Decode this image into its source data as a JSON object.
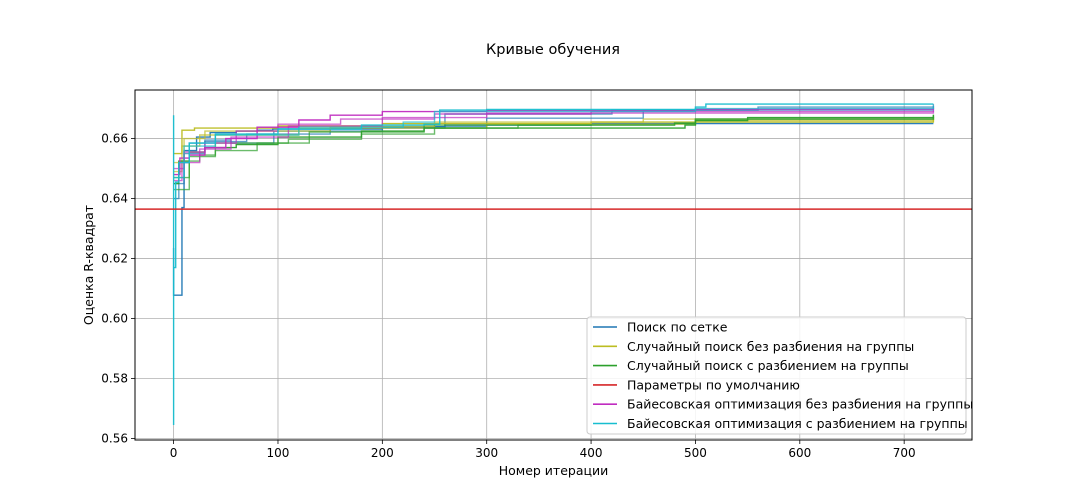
{
  "chart_data": {
    "type": "line",
    "title": "Кривые обучения",
    "xlabel": "Номер итерации",
    "ylabel": "Оценка R-квадрат",
    "xlim": [
      -37,
      765
    ],
    "ylim": [
      0.5595,
      0.6762
    ],
    "xticks": [
      0,
      100,
      200,
      300,
      400,
      500,
      600,
      700
    ],
    "yticks": [
      0.56,
      0.58,
      0.6,
      0.62,
      0.64,
      0.66
    ],
    "ytick_labels": [
      "0.56",
      "0.58",
      "0.60",
      "0.62",
      "0.64",
      "0.66"
    ],
    "grid": true,
    "legend_position": "lower-right",
    "hlines": [
      {
        "name": "Параметры по умолчанию",
        "color": "#d62728",
        "y": 0.6365
      }
    ],
    "series": [
      {
        "name": "Поиск по сетке",
        "color": "#1f77b4",
        "lines": [
          [
            [
              0,
              0.6235
            ],
            [
              0,
              0.6078
            ],
            [
              8,
              0.6078
            ],
            [
              8,
              0.637
            ],
            [
              10,
              0.637
            ],
            [
              10,
              0.656
            ],
            [
              22,
              0.6605
            ],
            [
              35,
              0.662
            ],
            [
              60,
              0.6625
            ],
            [
              80,
              0.6628
            ],
            [
              95,
              0.6632
            ],
            [
              200,
              0.6637
            ],
            [
              250,
              0.664
            ],
            [
              260,
              0.6645
            ],
            [
              400,
              0.665
            ],
            [
              728,
              0.665
            ]
          ],
          [
            [
              0,
              0.64
            ],
            [
              5,
              0.652
            ],
            [
              15,
              0.6585
            ],
            [
              30,
              0.6595
            ],
            [
              55,
              0.6585
            ],
            [
              94,
              0.6585
            ],
            [
              96,
              0.6625
            ],
            [
              200,
              0.664
            ],
            [
              300,
              0.6668
            ],
            [
              450,
              0.6695
            ],
            [
              560,
              0.6705
            ],
            [
              728,
              0.6715
            ]
          ],
          [
            [
              0,
              0.645
            ],
            [
              10,
              0.655
            ],
            [
              30,
              0.659
            ],
            [
              70,
              0.6615
            ],
            [
              150,
              0.6635
            ],
            [
              260,
              0.6682
            ],
            [
              420,
              0.6695
            ],
            [
              728,
              0.6708
            ]
          ]
        ]
      },
      {
        "name": "Случайный поиск без разбиения на группы",
        "color": "#bcbd22",
        "lines": [
          [
            [
              0,
              0.655
            ],
            [
              8,
              0.6628
            ],
            [
              20,
              0.6635
            ],
            [
              100,
              0.6642
            ],
            [
              200,
              0.665
            ],
            [
              400,
              0.6655
            ],
            [
              728,
              0.6665
            ]
          ],
          [
            [
              0,
              0.652
            ],
            [
              10,
              0.66
            ],
            [
              30,
              0.6625
            ],
            [
              150,
              0.664
            ],
            [
              250,
              0.6655
            ],
            [
              450,
              0.6665
            ],
            [
              728,
              0.6675
            ]
          ],
          [
            [
              0,
              0.649
            ],
            [
              8,
              0.6575
            ],
            [
              25,
              0.6612
            ],
            [
              120,
              0.6635
            ],
            [
              300,
              0.6648
            ],
            [
              500,
              0.666
            ],
            [
              728,
              0.667
            ]
          ]
        ]
      },
      {
        "name": "Случайный поиск с разбиением на группы",
        "color": "#2ca02c",
        "lines": [
          [
            [
              0,
              0.645
            ],
            [
              5,
              0.6525
            ],
            [
              15,
              0.6555
            ],
            [
              30,
              0.657
            ],
            [
              60,
              0.658
            ],
            [
              100,
              0.6605
            ],
            [
              180,
              0.6625
            ],
            [
              240,
              0.6635
            ],
            [
              490,
              0.6645
            ],
            [
              500,
              0.666
            ],
            [
              550,
              0.667
            ],
            [
              728,
              0.668
            ]
          ],
          [
            [
              0,
              0.643
            ],
            [
              15,
              0.6525
            ],
            [
              25,
              0.6545
            ],
            [
              40,
              0.656
            ],
            [
              80,
              0.6585
            ],
            [
              110,
              0.6598
            ],
            [
              180,
              0.6615
            ],
            [
              250,
              0.6635
            ],
            [
              330,
              0.6645
            ],
            [
              480,
              0.665
            ],
            [
              500,
              0.6665
            ],
            [
              728,
              0.6672
            ]
          ],
          [
            [
              0,
              0.647
            ],
            [
              15,
              0.654
            ],
            [
              40,
              0.6585
            ],
            [
              130,
              0.6622
            ],
            [
              240,
              0.6645
            ],
            [
              480,
              0.6652
            ],
            [
              500,
              0.6665
            ],
            [
              728,
              0.6678
            ]
          ]
        ]
      },
      {
        "name": "Байесовская оптимизация без разбиения на группы",
        "color": "#c02cc0",
        "lines": [
          [
            [
              0,
              0.648
            ],
            [
              6,
              0.6535
            ],
            [
              15,
              0.6545
            ],
            [
              30,
              0.657
            ],
            [
              50,
              0.66
            ],
            [
              80,
              0.6638
            ],
            [
              120,
              0.6662
            ],
            [
              150,
              0.6678
            ],
            [
              200,
              0.669
            ],
            [
              300,
              0.6693
            ],
            [
              500,
              0.6698
            ],
            [
              728,
              0.6702
            ]
          ],
          [
            [
              0,
              0.65
            ],
            [
              10,
              0.6555
            ],
            [
              30,
              0.6585
            ],
            [
              60,
              0.6625
            ],
            [
              100,
              0.6648
            ],
            [
              160,
              0.6665
            ],
            [
              250,
              0.6682
            ],
            [
              400,
              0.669
            ],
            [
              728,
              0.6695
            ]
          ],
          [
            [
              0,
              0.646
            ],
            [
              8,
              0.652
            ],
            [
              25,
              0.6565
            ],
            [
              55,
              0.6605
            ],
            [
              110,
              0.6642
            ],
            [
              200,
              0.667
            ],
            [
              300,
              0.6685
            ],
            [
              728,
              0.6692
            ]
          ]
        ]
      },
      {
        "name": "Байесовская оптимизация с разбиением на группы",
        "color": "#17becf",
        "lines": [
          [
            [
              0,
              0.6678
            ],
            [
              0,
              0.5645
            ],
            [
              0,
              0.617
            ],
            [
              2,
              0.6455
            ],
            [
              5,
              0.652
            ],
            [
              15,
              0.6585
            ],
            [
              40,
              0.6615
            ],
            [
              100,
              0.6632
            ],
            [
              180,
              0.6645
            ],
            [
              240,
              0.6648
            ],
            [
              255,
              0.6695
            ],
            [
              300,
              0.6697
            ],
            [
              500,
              0.6705
            ],
            [
              510,
              0.6715
            ],
            [
              728,
              0.6715
            ]
          ],
          [
            [
              0,
              0.647
            ],
            [
              10,
              0.6575
            ],
            [
              40,
              0.6612
            ],
            [
              120,
              0.6638
            ],
            [
              220,
              0.6655
            ],
            [
              250,
              0.669
            ],
            [
              500,
              0.67
            ],
            [
              728,
              0.6708
            ]
          ]
        ]
      }
    ]
  }
}
